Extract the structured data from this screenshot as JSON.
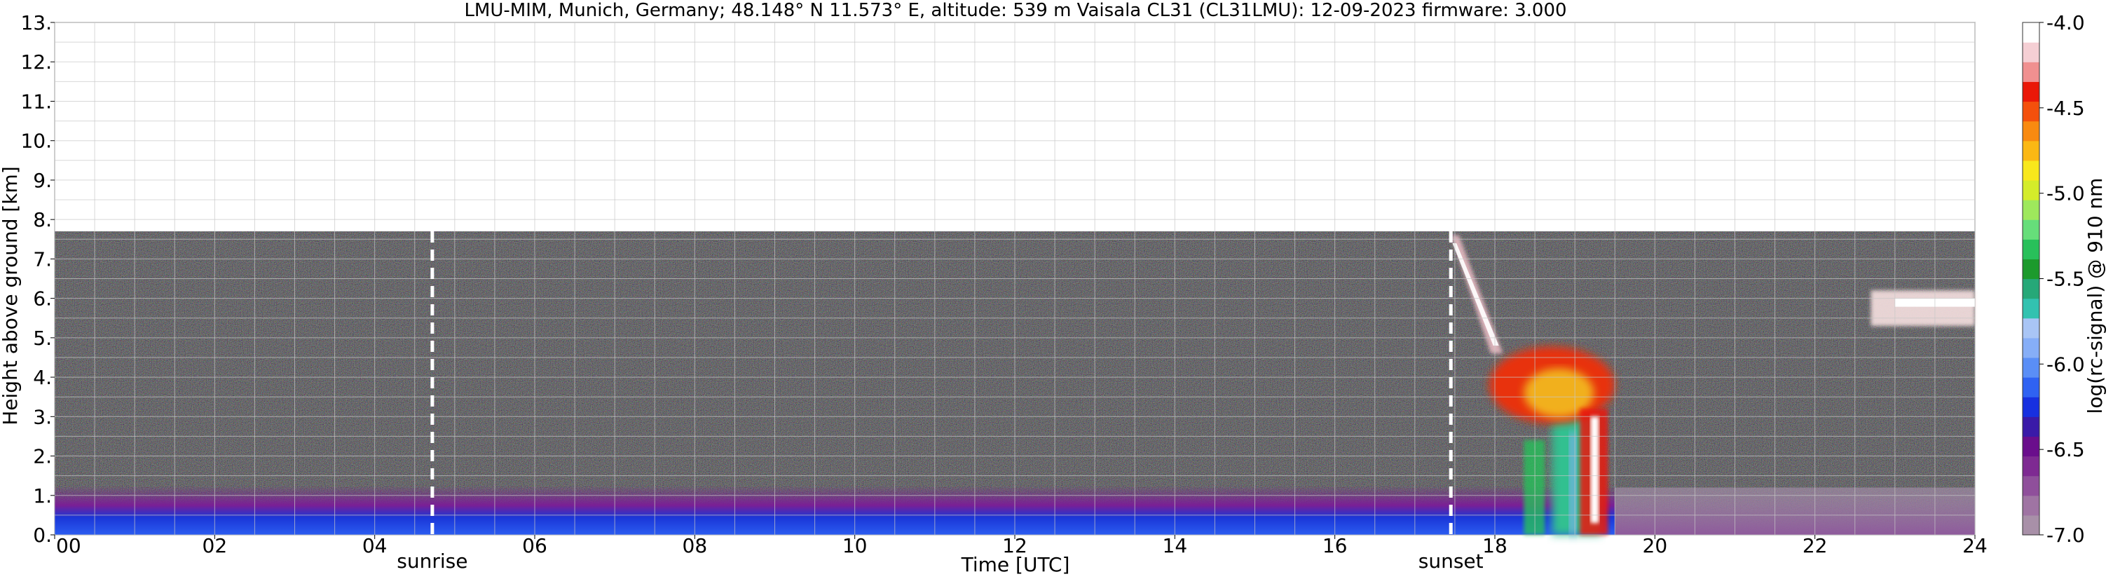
{
  "chart_data": {
    "type": "heatmap",
    "title": "LMU-MIM, Munich, Germany; 48.148° N 11.573° E, altitude: 539 m    Vaisala CL31 (CL31LMU): 12-09-2023    firmware: 3.000",
    "xlabel": "Time [UTC]",
    "ylabel": "Height above ground [km]",
    "xlim": [
      0,
      24
    ],
    "ylim": [
      0,
      13
    ],
    "x_ticks": [
      "00",
      "02",
      "04",
      "06",
      "08",
      "10",
      "12",
      "14",
      "16",
      "18",
      "20",
      "22",
      "24"
    ],
    "y_ticks": [
      "0.",
      "1.",
      "2.",
      "3.",
      "4.",
      "5.",
      "6.",
      "7.",
      "8.",
      "9.",
      "10.",
      "11.",
      "12.",
      "13."
    ],
    "grid": true,
    "data_ceiling_km": 7.7,
    "markers": [
      {
        "label": "sunrise",
        "x": 4.72
      },
      {
        "label": "sunset",
        "x": 17.45
      }
    ],
    "colorbar": {
      "label": "log(rc-signal) @ 910 nm",
      "range": [
        -7.0,
        -4.0
      ],
      "ticks": [
        "-4.0",
        "-4.5",
        "-5.0",
        "-5.5",
        "-6.0",
        "-6.5",
        "-7.0"
      ],
      "colors": [
        "#a890a8",
        "#9f74a3",
        "#8f4f9b",
        "#7e2a92",
        "#6a0e8c",
        "#3a1aa8",
        "#1730e0",
        "#2f62f2",
        "#5a8ef6",
        "#86aef7",
        "#a9c5f5",
        "#32c2b0",
        "#26a878",
        "#1c9a2c",
        "#28c05a",
        "#66de7a",
        "#9ee85c",
        "#d4ec2a",
        "#f8e81c",
        "#fbb814",
        "#f98a10",
        "#f4500c",
        "#ea1808",
        "#f09090",
        "#f5cfd4",
        "#ffffff"
      ]
    },
    "features": [
      {
        "name": "aerosol layer",
        "x": [
          0,
          24
        ],
        "y": [
          0,
          1.2
        ]
      },
      {
        "name": "descending cloud",
        "x": [
          17.45,
          18.1
        ],
        "y": [
          4.6,
          7.6
        ]
      },
      {
        "name": "convective cloud",
        "x": [
          18.1,
          19.5
        ],
        "y": [
          0,
          4.8
        ]
      },
      {
        "name": "cirrus",
        "x": [
          22.7,
          24
        ],
        "y": [
          5.3,
          6.2
        ]
      }
    ]
  }
}
